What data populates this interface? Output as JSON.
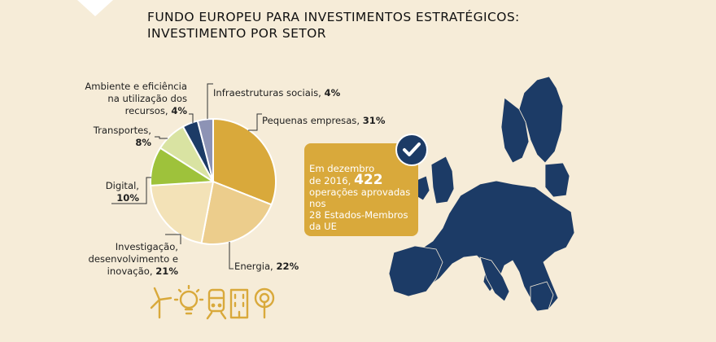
{
  "title": {
    "line1": "FUNDO EUROPEU PARA INVESTIMENTOS ESTRATÉGICOS:",
    "line2": "INVESTIMENTO POR SETOR"
  },
  "chart_data": {
    "type": "pie",
    "title": "FUNDO EUROPEU PARA INVESTIMENTOS ESTRATÉGICOS: INVESTIMENTO POR SETOR",
    "slices": [
      {
        "label": "Pequenas empresas",
        "value": 31,
        "display": "31%",
        "color": "#d9a93b"
      },
      {
        "label": "Energia",
        "value": 22,
        "display": "22%",
        "color": "#eccd8c"
      },
      {
        "label": "Investigação, desenvolvimento e inovação",
        "value": 21,
        "display": "21%",
        "color": "#f3e2b7"
      },
      {
        "label": "Digital",
        "value": 10,
        "display": "10%",
        "color": "#9ec23b"
      },
      {
        "label": "Transportes",
        "value": 8,
        "display": "8%",
        "color": "#d9e3a2"
      },
      {
        "label": "Ambiente e eficiência na utilização dos recursos",
        "value": 4,
        "display": "4%",
        "color": "#1c3b66"
      },
      {
        "label": "Infraestruturas sociais",
        "value": 4,
        "display": "4%",
        "color": "#8d93b5"
      }
    ]
  },
  "labels": {
    "infra": {
      "text": "Infraestruturas sociais, ",
      "pct": "4%"
    },
    "pequenas": {
      "text": "Pequenas empresas, ",
      "pct": "31%"
    },
    "ambiente": {
      "l1": "Ambiente e eficiência",
      "l2": "na utilização dos",
      "l3": "recursos, ",
      "pct": "4%"
    },
    "transportes": {
      "l1": "Transportes,",
      "pct": "8%"
    },
    "digital": {
      "l1": "Digital,",
      "pct": "10%"
    },
    "investigacao": {
      "l1": "Investigação,",
      "l2": "desenvolvimento e",
      "l3": "inovação, ",
      "pct": "21%"
    },
    "energia": {
      "text": "Energia, ",
      "pct": "22%"
    }
  },
  "callout": {
    "line1": "Em dezembro",
    "line2a": "de 2016, ",
    "number": "422",
    "line3": "operações aprovadas nos",
    "line4": "28 Estados-Membros",
    "line5": "da UE"
  },
  "colors": {
    "background": "#f6ecd8",
    "map": "#1c3b66",
    "accent": "#d9a93b",
    "icon": "#d9a93b"
  },
  "icons": [
    "wind-turbine-icon",
    "lightbulb-icon",
    "train-icon",
    "building-icon",
    "microphone-icon"
  ]
}
